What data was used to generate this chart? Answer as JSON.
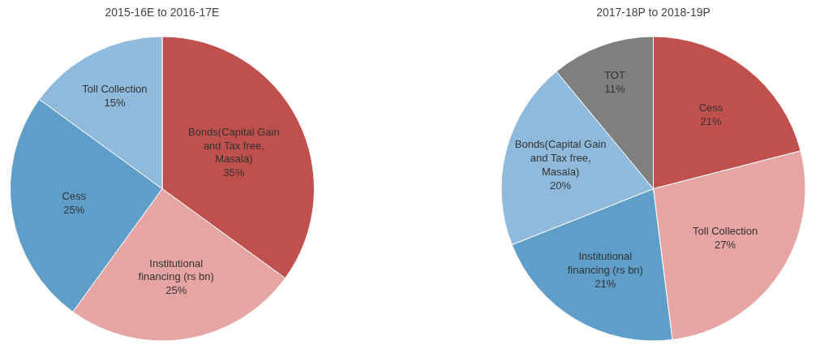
{
  "chart_data": [
    {
      "type": "pie",
      "title": "2015-16E to 2016-17E",
      "categories": [
        "Bonds(Capital Gain and Tax free, Masala)",
        "Institutional financing (rs bn)",
        "Cess",
        "Toll Collection"
      ],
      "values": [
        35,
        25,
        25,
        15
      ],
      "value_labels": [
        "35%",
        "25%",
        "25%",
        "15%"
      ],
      "colors": [
        "#c0504d",
        "#e6a5a3",
        "#5f9ec9",
        "#8fbadb"
      ]
    },
    {
      "type": "pie",
      "title": "2017-18P to 2018-19P",
      "categories": [
        "Cess",
        "Toll Collection",
        "Institutional financing (rs bn)",
        "Bonds(Capital Gain and Tax free, Masala)",
        "TOT"
      ],
      "values": [
        21,
        27,
        21,
        20,
        11
      ],
      "value_labels": [
        "21%",
        "27%",
        "21%",
        "20%",
        "11%"
      ],
      "colors": [
        "#c0504d",
        "#e6a5a3",
        "#5f9ec9",
        "#8fbadb",
        "#7f7f7f"
      ]
    }
  ]
}
